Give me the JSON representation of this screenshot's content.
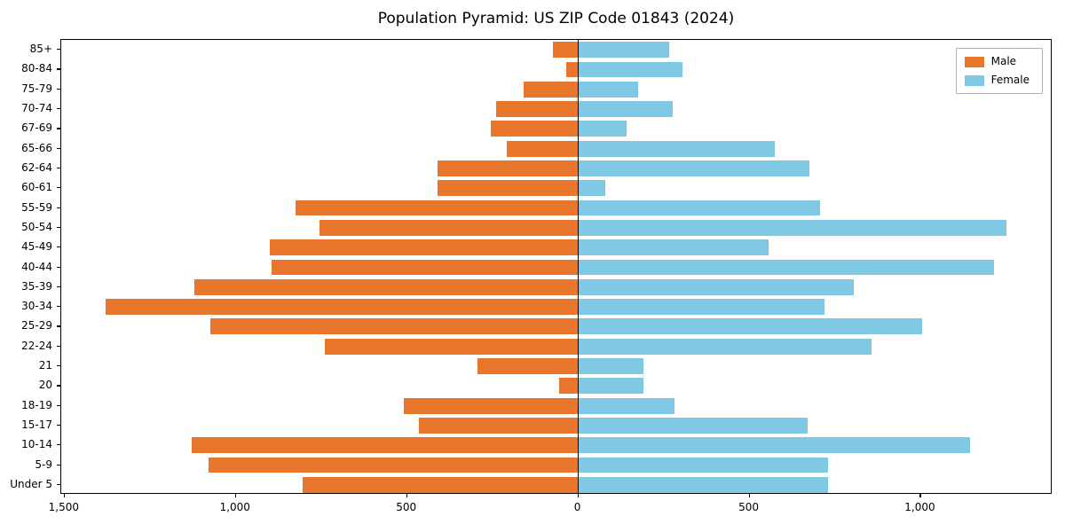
{
  "chart_data": {
    "type": "bar",
    "variant": "population-pyramid",
    "title": "Population Pyramid: US ZIP Code 01843 (2024)",
    "categories": [
      "85+",
      "80-84",
      "75-79",
      "70-74",
      "67-69",
      "65-66",
      "62-64",
      "60-61",
      "55-59",
      "50-54",
      "45-49",
      "40-44",
      "35-39",
      "30-34",
      "25-29",
      "22-24",
      "21",
      "20",
      "18-19",
      "15-17",
      "10-14",
      "5-9",
      "Under 5"
    ],
    "series": [
      {
        "name": "Male",
        "color": "#e8762d",
        "side": "left",
        "values": [
          75,
          35,
          160,
          240,
          255,
          210,
          410,
          410,
          825,
          755,
          900,
          895,
          1120,
          1380,
          1075,
          740,
          295,
          55,
          510,
          465,
          1130,
          1080,
          805
        ]
      },
      {
        "name": "Female",
        "color": "#7fc9e4",
        "side": "right",
        "values": [
          265,
          305,
          175,
          275,
          140,
          575,
          675,
          80,
          705,
          1250,
          555,
          1215,
          805,
          720,
          1005,
          855,
          190,
          190,
          280,
          670,
          1145,
          730,
          730
        ]
      }
    ],
    "xlim": [
      -1510,
      1385
    ],
    "x_ticks": [
      {
        "value": -1500,
        "label": "1,500"
      },
      {
        "value": -1000,
        "label": "1,000"
      },
      {
        "value": -500,
        "label": "500"
      },
      {
        "value": 0,
        "label": "0"
      },
      {
        "value": 500,
        "label": "500"
      },
      {
        "value": 1000,
        "label": "1,000"
      }
    ],
    "legend": {
      "position": "upper-right",
      "entries": [
        "Male",
        "Female"
      ]
    },
    "xlabel": "",
    "ylabel": "",
    "grid": false,
    "axis_color": "#000000",
    "background": "#ffffff"
  }
}
